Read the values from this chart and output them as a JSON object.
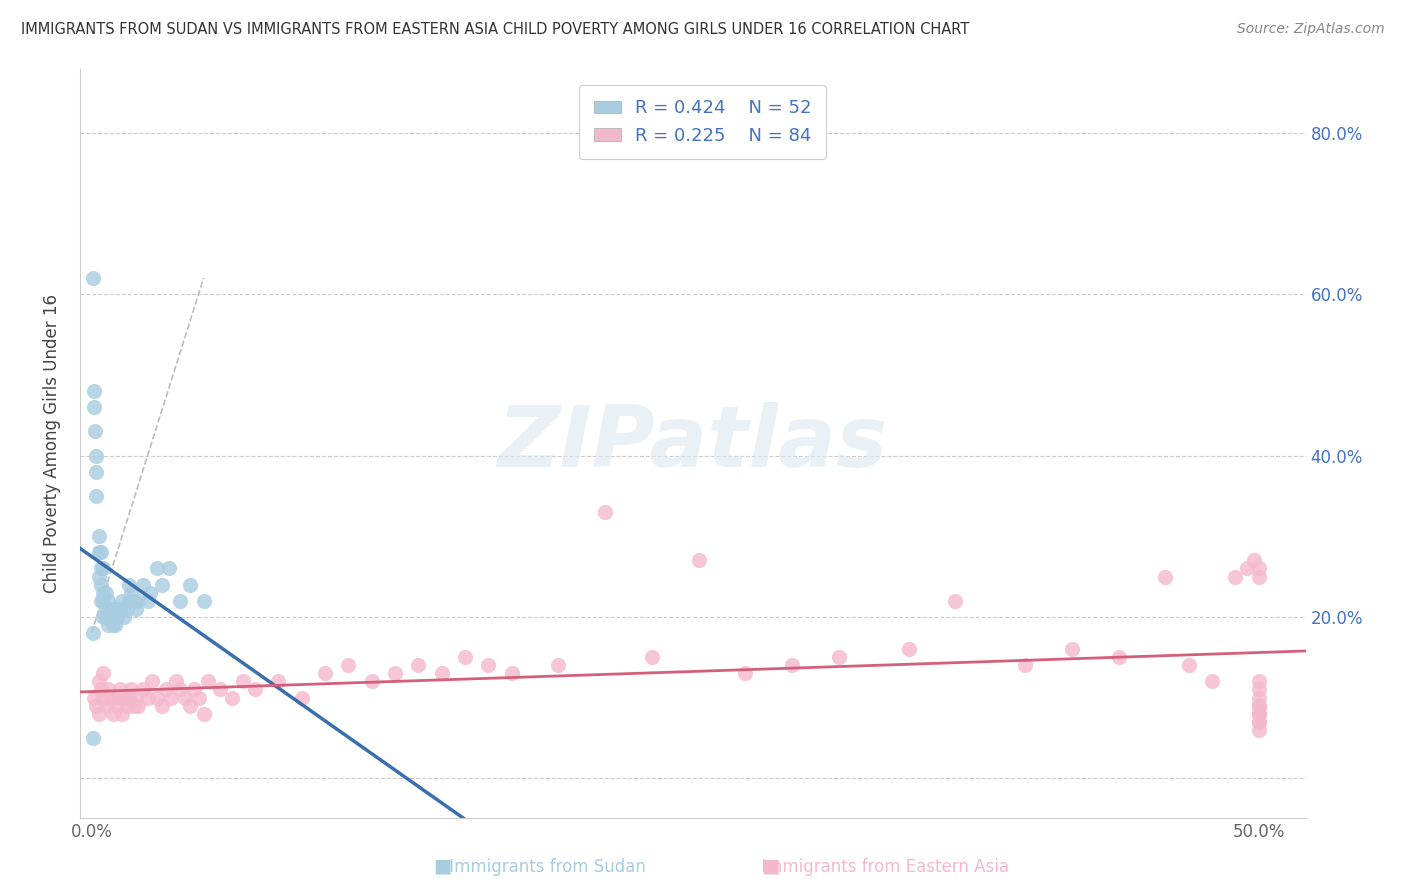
{
  "title": "IMMIGRANTS FROM SUDAN VS IMMIGRANTS FROM EASTERN ASIA CHILD POVERTY AMONG GIRLS UNDER 16 CORRELATION CHART",
  "source": "Source: ZipAtlas.com",
  "ylabel": "Child Poverty Among Girls Under 16",
  "sudan_R": 0.424,
  "sudan_N": 52,
  "eastern_asia_R": 0.225,
  "eastern_asia_N": 84,
  "sudan_color": "#a8cce0",
  "eastern_asia_color": "#f4b8cc",
  "sudan_line_color": "#3a6fad",
  "eastern_asia_line_color": "#d45f7a",
  "watermark_text": "ZIPatlas",
  "watermark_color": "#e0e8f0",
  "sudan_x": [
    0.0008,
    0.001,
    0.001,
    0.0015,
    0.002,
    0.002,
    0.002,
    0.003,
    0.003,
    0.003,
    0.004,
    0.004,
    0.004,
    0.004,
    0.005,
    0.005,
    0.005,
    0.005,
    0.006,
    0.006,
    0.006,
    0.007,
    0.007,
    0.007,
    0.008,
    0.008,
    0.009,
    0.009,
    0.01,
    0.01,
    0.011,
    0.012,
    0.013,
    0.014,
    0.015,
    0.016,
    0.016,
    0.017,
    0.018,
    0.019,
    0.02,
    0.022,
    0.024,
    0.025,
    0.028,
    0.03,
    0.033,
    0.038,
    0.042,
    0.048,
    0.0005,
    0.0005
  ],
  "sudan_y": [
    0.62,
    0.48,
    0.46,
    0.43,
    0.38,
    0.35,
    0.4,
    0.3,
    0.28,
    0.25,
    0.28,
    0.26,
    0.24,
    0.22,
    0.26,
    0.23,
    0.22,
    0.2,
    0.23,
    0.21,
    0.2,
    0.22,
    0.2,
    0.19,
    0.21,
    0.2,
    0.2,
    0.19,
    0.21,
    0.19,
    0.2,
    0.21,
    0.22,
    0.2,
    0.21,
    0.22,
    0.24,
    0.23,
    0.22,
    0.21,
    0.22,
    0.24,
    0.22,
    0.23,
    0.26,
    0.24,
    0.26,
    0.22,
    0.24,
    0.22,
    0.18,
    0.05
  ],
  "eastern_asia_x": [
    0.001,
    0.002,
    0.003,
    0.003,
    0.004,
    0.005,
    0.005,
    0.006,
    0.007,
    0.008,
    0.009,
    0.01,
    0.011,
    0.012,
    0.013,
    0.014,
    0.015,
    0.016,
    0.017,
    0.018,
    0.019,
    0.02,
    0.022,
    0.024,
    0.026,
    0.028,
    0.03,
    0.032,
    0.034,
    0.036,
    0.038,
    0.04,
    0.042,
    0.044,
    0.046,
    0.048,
    0.05,
    0.055,
    0.06,
    0.065,
    0.07,
    0.08,
    0.09,
    0.1,
    0.11,
    0.12,
    0.13,
    0.14,
    0.15,
    0.16,
    0.17,
    0.18,
    0.2,
    0.22,
    0.24,
    0.26,
    0.28,
    0.3,
    0.32,
    0.35,
    0.37,
    0.4,
    0.42,
    0.44,
    0.46,
    0.47,
    0.48,
    0.49,
    0.495,
    0.498,
    0.5,
    0.5,
    0.5,
    0.5,
    0.5,
    0.5,
    0.5,
    0.5,
    0.5,
    0.5,
    0.5,
    0.5,
    0.5,
    0.5
  ],
  "eastern_asia_y": [
    0.1,
    0.09,
    0.12,
    0.08,
    0.11,
    0.1,
    0.13,
    0.09,
    0.11,
    0.1,
    0.08,
    0.1,
    0.09,
    0.11,
    0.08,
    0.1,
    0.09,
    0.1,
    0.11,
    0.09,
    0.1,
    0.09,
    0.11,
    0.1,
    0.12,
    0.1,
    0.09,
    0.11,
    0.1,
    0.12,
    0.11,
    0.1,
    0.09,
    0.11,
    0.1,
    0.08,
    0.12,
    0.11,
    0.1,
    0.12,
    0.11,
    0.12,
    0.1,
    0.13,
    0.14,
    0.12,
    0.13,
    0.14,
    0.13,
    0.15,
    0.14,
    0.13,
    0.14,
    0.33,
    0.15,
    0.27,
    0.13,
    0.14,
    0.15,
    0.16,
    0.22,
    0.14,
    0.16,
    0.15,
    0.25,
    0.14,
    0.12,
    0.25,
    0.26,
    0.27,
    0.25,
    0.26,
    0.06,
    0.07,
    0.08,
    0.09,
    0.1,
    0.11,
    0.12,
    0.08,
    0.09,
    0.08,
    0.09,
    0.07
  ],
  "xlim": [
    -0.005,
    0.52
  ],
  "ylim": [
    -0.05,
    0.88
  ],
  "y_ticks": [
    0.0,
    0.2,
    0.4,
    0.6,
    0.8
  ],
  "y_tick_labels_right": [
    "",
    "20.0%",
    "40.0%",
    "60.0%",
    "80.0%"
  ],
  "x_ticks": [
    0.0,
    0.1,
    0.2,
    0.3,
    0.4,
    0.5
  ],
  "x_tick_labels": [
    "0.0%",
    "",
    "",
    "",
    "",
    "50.0%"
  ]
}
